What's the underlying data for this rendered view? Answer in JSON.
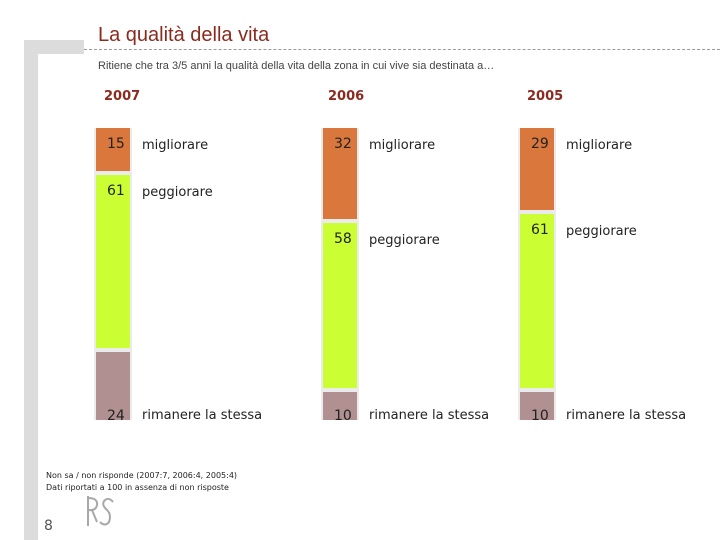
{
  "header": {
    "title": "La qualità della vita",
    "subtitle": "Ritiene che tra 3/5 anni la qualità della vita della zona in cui vive sia destinata a…"
  },
  "chart_data": {
    "type": "bar",
    "stacked": true,
    "orientation": "vertical",
    "categories": [
      "2007",
      "2006",
      "2005"
    ],
    "series": [
      {
        "name": "migliorare",
        "values": [
          15,
          32,
          29
        ],
        "color": "#d9773c"
      },
      {
        "name": "peggiorare",
        "values": [
          61,
          58,
          61
        ],
        "color": "#ccff33"
      },
      {
        "name": "rimanere la stessa",
        "values": [
          24,
          10,
          10
        ],
        "color": "#b09090"
      }
    ],
    "background_color": "#ebebeb"
  },
  "footnote": {
    "line1": "Non sa / non risponde (2007:7, 2006:4, 2005:4)",
    "line2": "Dati riportati a 100 in assenza di non risposte"
  },
  "page_number": "8",
  "logo_text": "RS"
}
